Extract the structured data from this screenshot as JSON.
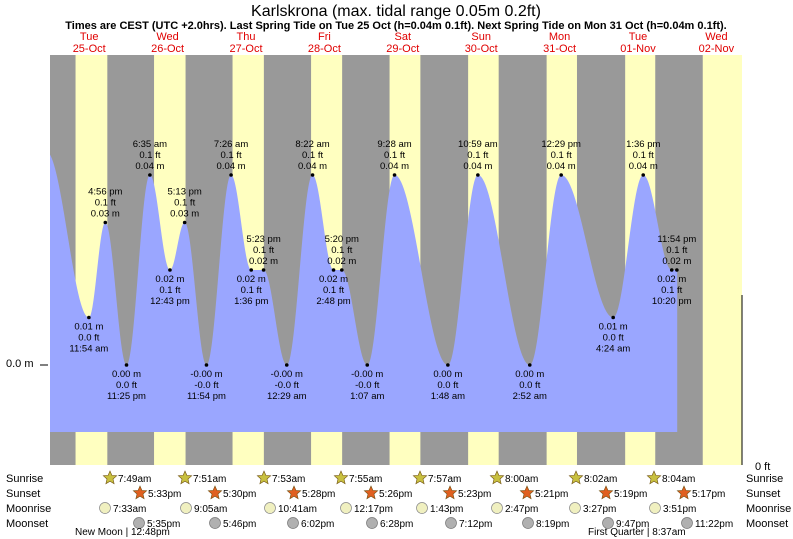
{
  "header": {
    "title": "Karlskrona (max. tidal range 0.05m 0.2ft)",
    "subtitle": "Times are CEST (UTC +2.0hrs). Last Spring Tide on Tue 25 Oct (h=0.04m 0.1ft). Next Spring Tide on Mon 31 Oct (h=0.04m 0.1ft)."
  },
  "colors": {
    "background": "#999999",
    "daylight": "#ffffc0",
    "water": "#9aa6ff",
    "day_label": "#e00000",
    "sunrise_star": "#c8c040",
    "sunset_star": "#e06020",
    "moon": "#f0f0c0",
    "moonset": "#b0b0b0"
  },
  "days": [
    {
      "dow": "Tue",
      "date": "25-Oct"
    },
    {
      "dow": "Wed",
      "date": "26-Oct"
    },
    {
      "dow": "Thu",
      "date": "27-Oct"
    },
    {
      "dow": "Fri",
      "date": "28-Oct"
    },
    {
      "dow": "Sat",
      "date": "29-Oct"
    },
    {
      "dow": "Sun",
      "date": "30-Oct"
    },
    {
      "dow": "Mon",
      "date": "31-Oct"
    },
    {
      "dow": "Tue",
      "date": "01-Nov"
    },
    {
      "dow": "Wed",
      "date": "02-Nov"
    }
  ],
  "chart_data": {
    "type": "area",
    "ylabel_left": "0.0 m",
    "ylabel_right": "0 ft",
    "annotations": [
      {
        "day": 0,
        "hour": 16.93,
        "h": 0.03,
        "label": [
          "4:56 pm",
          "0.1 ft",
          "0.03 m"
        ]
      },
      {
        "day": 1,
        "hour": 6.58,
        "h": 0.04,
        "label": [
          "6:35 am",
          "0.1 ft",
          "0.04 m"
        ]
      },
      {
        "day": 1,
        "hour": 17.22,
        "h": 0.03,
        "label": [
          "5:13 pm",
          "0.1 ft",
          "0.03 m"
        ]
      },
      {
        "day": 2,
        "hour": 7.43,
        "h": 0.04,
        "label": [
          "7:26 am",
          "0.1 ft",
          "0.04 m"
        ]
      },
      {
        "day": 2,
        "hour": 17.38,
        "h": 0.02,
        "label": [
          "5:23 pm",
          "0.1 ft",
          "0.02 m"
        ]
      },
      {
        "day": 3,
        "hour": 8.37,
        "h": 0.04,
        "label": [
          "8:22 am",
          "0.1 ft",
          "0.04 m"
        ]
      },
      {
        "day": 3,
        "hour": 17.33,
        "h": 0.02,
        "label": [
          "5:20 pm",
          "0.1 ft",
          "0.02 m"
        ]
      },
      {
        "day": 4,
        "hour": 9.47,
        "h": 0.04,
        "label": [
          "9:28 am",
          "0.1 ft",
          "0.04 m"
        ]
      },
      {
        "day": 5,
        "hour": 10.98,
        "h": 0.04,
        "label": [
          "10:59 am",
          "0.1 ft",
          "0.04 m"
        ]
      },
      {
        "day": 6,
        "hour": 12.48,
        "h": 0.04,
        "label": [
          "12:29 pm",
          "0.1 ft",
          "0.04 m"
        ]
      },
      {
        "day": 7,
        "hour": 13.6,
        "h": 0.04,
        "label": [
          "1:36 pm",
          "0.1 ft",
          "0.04 m"
        ]
      },
      {
        "day": 7,
        "hour": 23.9,
        "h": 0.02,
        "label": [
          "11:54 pm",
          "0.1 ft",
          "0.02 m"
        ]
      },
      {
        "day": 0,
        "hour": 11.9,
        "h": 0.01,
        "label": [
          "0.01 m",
          "0.0 ft",
          "11:54 am"
        ]
      },
      {
        "day": 0,
        "hour": 23.42,
        "h": 0.0,
        "label": [
          "0.00 m",
          "0.0 ft",
          "11:25 pm"
        ]
      },
      {
        "day": 1,
        "hour": 12.72,
        "h": 0.02,
        "label": [
          "0.02 m",
          "0.1 ft",
          "12:43 pm"
        ]
      },
      {
        "day": 1,
        "hour": 23.9,
        "h": 0.0,
        "label": [
          "-0.00 m",
          "-0.0 ft",
          "11:54 pm"
        ]
      },
      {
        "day": 2,
        "hour": 13.6,
        "h": 0.02,
        "label": [
          "0.02 m",
          "0.1 ft",
          "1:36 pm"
        ]
      },
      {
        "day": 3,
        "hour": 0.48,
        "h": 0.0,
        "label": [
          "-0.00 m",
          "-0.0 ft",
          "12:29 am"
        ]
      },
      {
        "day": 3,
        "hour": 14.8,
        "h": 0.02,
        "label": [
          "0.02 m",
          "0.1 ft",
          "2:48 pm"
        ]
      },
      {
        "day": 4,
        "hour": 1.12,
        "h": 0.0,
        "label": [
          "-0.00 m",
          "-0.0 ft",
          "1:07 am"
        ]
      },
      {
        "day": 5,
        "hour": 1.8,
        "h": 0.0,
        "label": [
          "0.00 m",
          "0.0 ft",
          "1:48 am"
        ]
      },
      {
        "day": 6,
        "hour": 2.87,
        "h": 0.0,
        "label": [
          "0.00 m",
          "0.0 ft",
          "2:52 am"
        ]
      },
      {
        "day": 7,
        "hour": 4.4,
        "h": 0.01,
        "label": [
          "0.01 m",
          "0.0 ft",
          "4:24 am"
        ]
      },
      {
        "day": 7,
        "hour": 22.33,
        "h": 0.02,
        "label": [
          "0.02 m",
          "0.1 ft",
          "10:20 pm"
        ]
      }
    ],
    "daylight": [
      {
        "day": 0,
        "rise": 7.82,
        "set": 17.55
      },
      {
        "day": 1,
        "rise": 7.85,
        "set": 17.5
      },
      {
        "day": 2,
        "rise": 7.88,
        "set": 17.47
      },
      {
        "day": 3,
        "rise": 7.92,
        "set": 17.43
      },
      {
        "day": 4,
        "rise": 7.95,
        "set": 17.38
      },
      {
        "day": 5,
        "rise": 8.0,
        "set": 17.35
      },
      {
        "day": 6,
        "rise": 8.03,
        "set": 17.32
      },
      {
        "day": 7,
        "rise": 8.07,
        "set": 17.28
      },
      {
        "day": 8,
        "rise": 7.82,
        "set": 24
      }
    ]
  },
  "rows": {
    "labels": [
      "Sunrise",
      "Sunset",
      "Moonrise",
      "Moonset"
    ],
    "sunrise": [
      "7:49am",
      "7:51am",
      "7:53am",
      "7:55am",
      "7:57am",
      "8:00am",
      "8:02am",
      "8:04am"
    ],
    "sunset": [
      "5:33pm",
      "5:30pm",
      "5:28pm",
      "5:26pm",
      "5:23pm",
      "5:21pm",
      "5:19pm",
      "5:17pm"
    ],
    "moonrise": [
      "7:33am",
      "9:05am",
      "10:41am",
      "12:17pm",
      "1:43pm",
      "2:47pm",
      "3:27pm",
      "3:51pm"
    ],
    "moonset": [
      "5:35pm",
      "5:46pm",
      "6:02pm",
      "6:28pm",
      "7:12pm",
      "8:19pm",
      "9:47pm",
      "11:22pm"
    ],
    "new_moon": "New Moon | 12:48pm",
    "first_quarter": "First Quarter | 8:37am"
  }
}
